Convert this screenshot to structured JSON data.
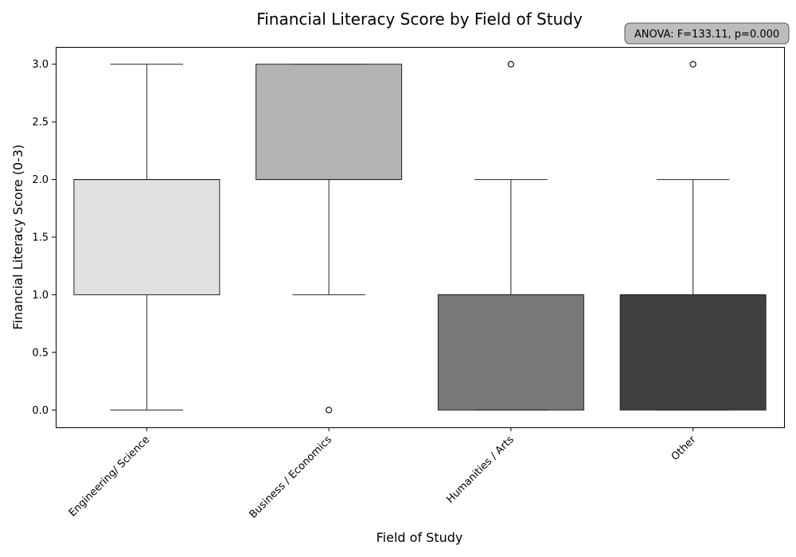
{
  "chart_data": {
    "type": "box",
    "title": "Financial Literacy Score by Field of Study",
    "xlabel": "Field of Study",
    "ylabel": "Financial Literacy Score (0-3)",
    "ylim": [
      -0.15,
      3.15
    ],
    "yticks": [
      0.0,
      0.5,
      1.0,
      1.5,
      2.0,
      2.5,
      3.0
    ],
    "ytick_labels": [
      "0.0",
      "0.5",
      "1.0",
      "1.5",
      "2.0",
      "2.5",
      "3.0"
    ],
    "grid": false,
    "annotation": "ANOVA: F=133.11, p=0.000",
    "categories": [
      "Engineering/ Science",
      "Business / Economics",
      "Humanities / Arts",
      "Other"
    ],
    "boxes": [
      {
        "category": "Engineering/ Science",
        "whisker_low": 0,
        "q1": 1,
        "median": 2,
        "q3": 2,
        "whisker_high": 3,
        "outliers": [],
        "color": "#e0e0e0"
      },
      {
        "category": "Business / Economics",
        "whisker_low": 1,
        "q1": 2,
        "median": 2,
        "q3": 3,
        "whisker_high": 3,
        "outliers": [
          0
        ],
        "color": "#b3b3b3"
      },
      {
        "category": "Humanities / Arts",
        "whisker_low": 0,
        "q1": 0,
        "median": 1,
        "q3": 1,
        "whisker_high": 2,
        "outliers": [
          3
        ],
        "color": "#787878"
      },
      {
        "category": "Other",
        "whisker_low": 0,
        "q1": 0,
        "median": 1,
        "q3": 1,
        "whisker_high": 2,
        "outliers": [
          3
        ],
        "color": "#404040"
      }
    ]
  }
}
